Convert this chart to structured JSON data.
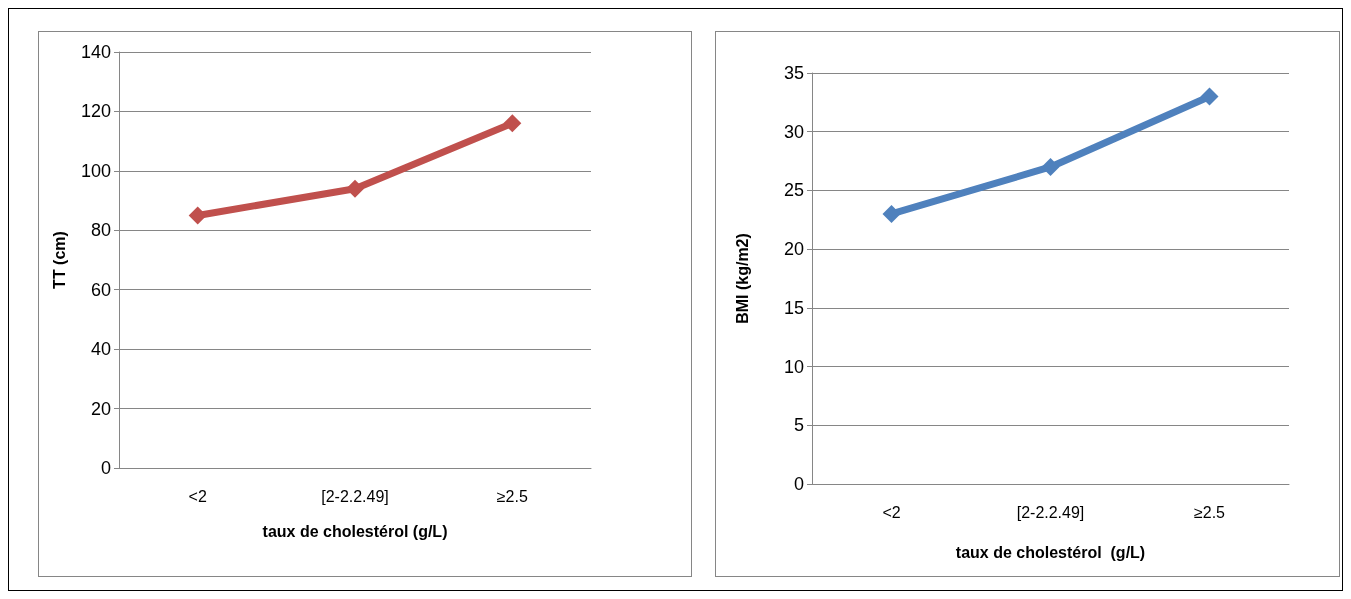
{
  "chart_data": [
    {
      "type": "line",
      "categories": [
        "<2",
        "[2-2.2.49]",
        "≥2.5"
      ],
      "xlabel": "taux de cholestérol (g/L)",
      "ylabel": "TT (cm)",
      "ylim": [
        0,
        140
      ],
      "yticks": [
        0,
        20,
        40,
        60,
        80,
        100,
        120,
        140
      ],
      "grid": "y",
      "marker": "diamond",
      "line_style": "solid",
      "series": [
        {
          "color": "#c0504d",
          "values": [
            85,
            94,
            116
          ]
        }
      ]
    },
    {
      "type": "line",
      "categories": [
        "<2",
        "[2-2.2.49]",
        "≥2.5"
      ],
      "xlabel": "taux de cholestérol  (g/L)",
      "ylabel": "BMI (kg/m2)",
      "ylim": [
        0,
        35
      ],
      "yticks": [
        0,
        5,
        10,
        15,
        20,
        25,
        30,
        35
      ],
      "grid": "y",
      "marker": "diamond",
      "line_style": "solid",
      "series": [
        {
          "color": "#4f81bd",
          "values": [
            23,
            27,
            33
          ]
        }
      ]
    }
  ]
}
